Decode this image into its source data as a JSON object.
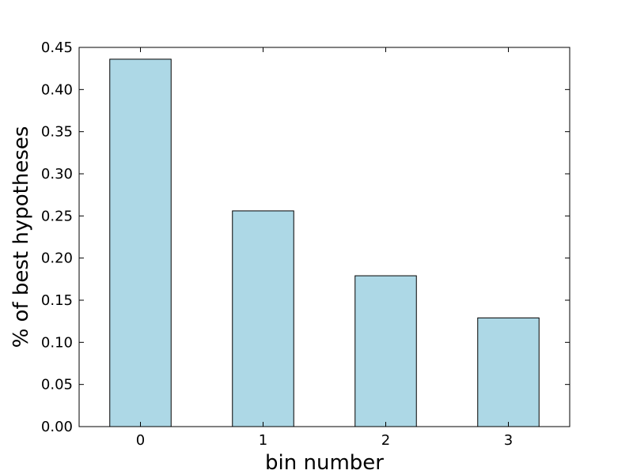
{
  "chart_data": {
    "type": "bar",
    "title": "",
    "xlabel": "bin number",
    "ylabel": "% of best hypotheses",
    "categories": [
      "0",
      "1",
      "2",
      "3"
    ],
    "values": [
      0.436,
      0.256,
      0.179,
      0.129
    ],
    "ylim": [
      0,
      0.45
    ],
    "yticks": [
      "0.00",
      "0.05",
      "0.10",
      "0.15",
      "0.20",
      "0.25",
      "0.30",
      "0.35",
      "0.40",
      "0.45"
    ],
    "grid": false,
    "legend": "none",
    "bar_color": "#add8e6",
    "edge_color": "#000000"
  }
}
